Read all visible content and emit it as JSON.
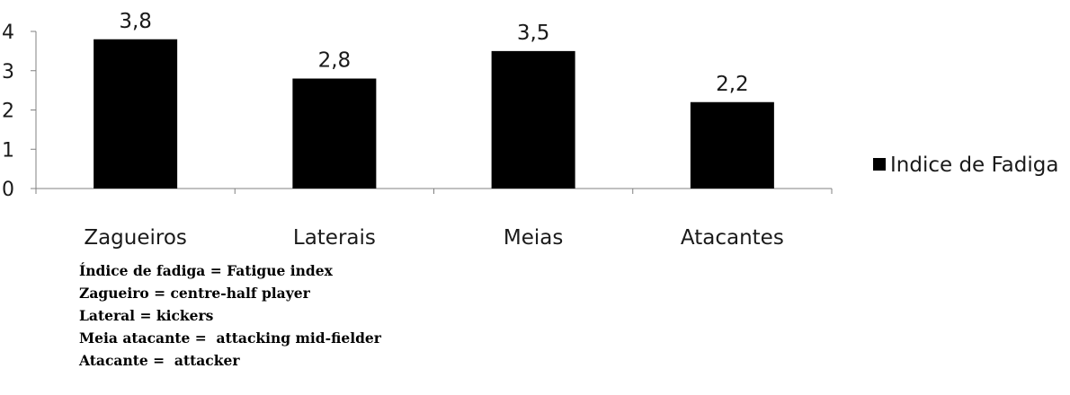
{
  "chart_data": {
    "type": "bar",
    "categories": [
      "Zagueiros",
      "Laterais",
      "Meias",
      "Atacantes"
    ],
    "series": [
      {
        "name": "Indice de Fadiga",
        "values": [
          3.8,
          2.8,
          3.5,
          2.2
        ],
        "data_labels": [
          "3,8",
          "2,8",
          "3,5",
          "2,2"
        ],
        "color": "#000000"
      }
    ],
    "ylim": [
      0,
      4
    ],
    "yticks": [
      0,
      1,
      2,
      3,
      4
    ],
    "ytick_labels": [
      "0",
      "1",
      "2",
      "3",
      "4"
    ],
    "legend_position": "right",
    "grid": false
  },
  "notes": [
    "Índice de fadiga = Fatigue index",
    "Zagueiro = centre-half player",
    "Lateral = kickers",
    "Meia atacante =  attacking mid-fielder",
    "Atacante =  attacker"
  ]
}
